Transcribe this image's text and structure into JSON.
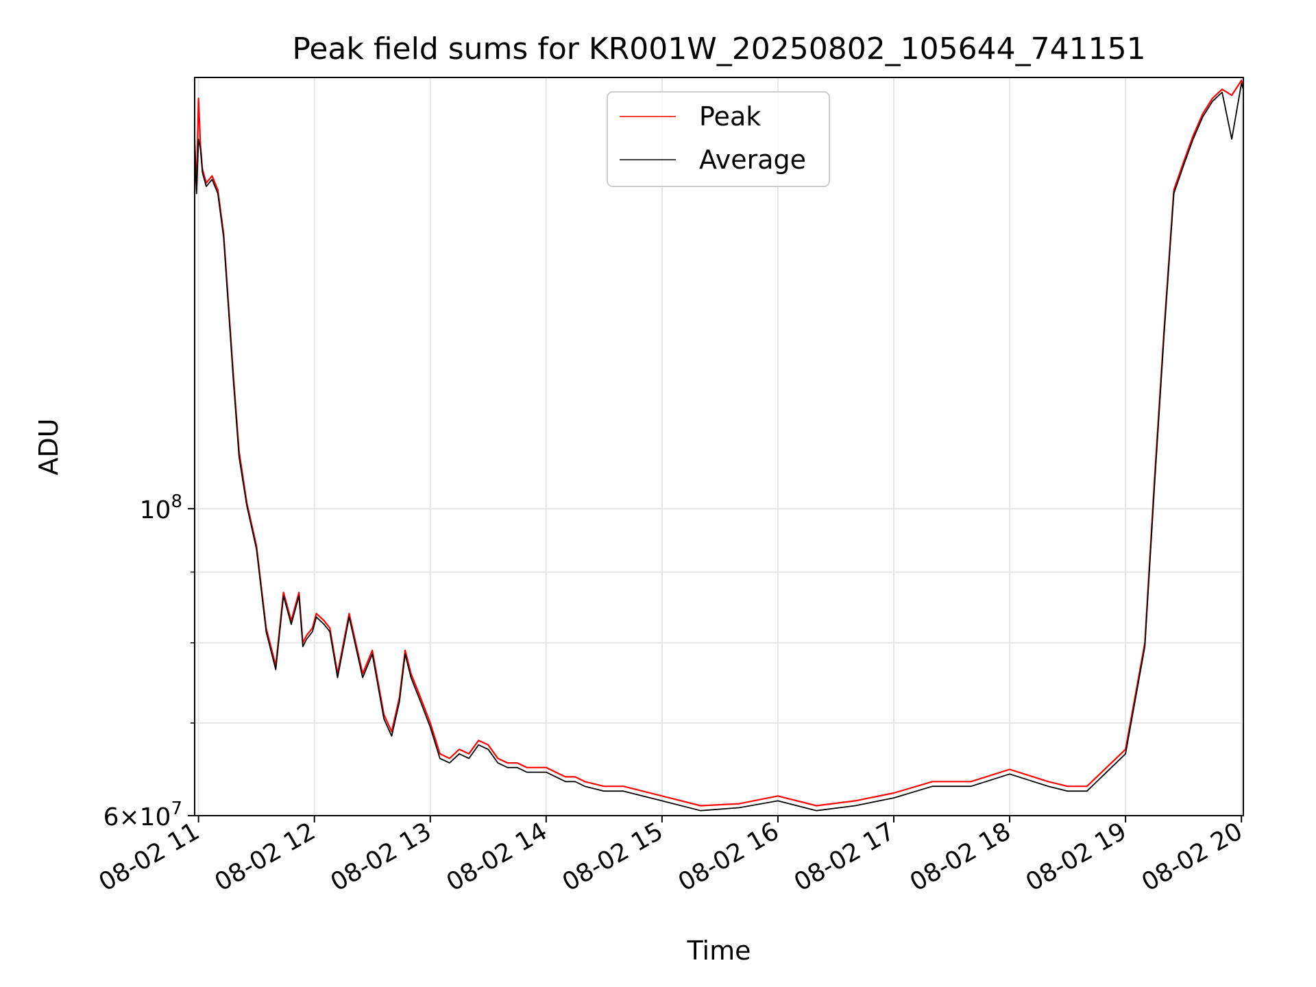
{
  "chart_data": {
    "type": "line",
    "title": "Peak field sums for KR001W_20250802_105644_741151",
    "xlabel": "Time",
    "ylabel": "ADU",
    "yscale": "log",
    "xlim": [
      "2025-08-02 10:58",
      "2025-08-02 20:01"
    ],
    "ylim": [
      60000000,
      205000000
    ],
    "x_ticks": [
      "08-02 11",
      "08-02 12",
      "08-02 13",
      "08-02 14",
      "08-02 15",
      "08-02 16",
      "08-02 17",
      "08-02 18",
      "08-02 19",
      "08-02 20"
    ],
    "y_major_ticks": [
      {
        "value": 60000000,
        "mantissa": "6",
        "exponent": "7"
      },
      {
        "value": 100000000,
        "mantissa": "",
        "exponent": "8"
      }
    ],
    "y_minor_ticks": [
      70000000,
      80000000,
      90000000
    ],
    "grid": true,
    "legend_position": "top-center",
    "series": [
      {
        "name": "Peak",
        "color": "#ff0000",
        "x": [
          "10:58",
          "10:59",
          "11:00",
          "11:01",
          "11:02",
          "11:04",
          "11:07",
          "11:10",
          "11:13",
          "11:18",
          "11:21",
          "11:25",
          "11:30",
          "11:35",
          "11:40",
          "11:44",
          "11:48",
          "11:52",
          "11:54",
          "11:56",
          "11:59",
          "12:01",
          "12:05",
          "12:08",
          "12:12",
          "12:18",
          "12:25",
          "12:30",
          "12:36",
          "12:40",
          "12:44",
          "12:47",
          "12:50",
          "12:55",
          "13:00",
          "13:05",
          "13:10",
          "13:15",
          "13:20",
          "13:25",
          "13:30",
          "13:35",
          "13:40",
          "13:45",
          "13:50",
          "13:55",
          "14:00",
          "14:05",
          "14:10",
          "14:15",
          "14:20",
          "14:30",
          "14:40",
          "15:00",
          "15:20",
          "15:40",
          "16:00",
          "16:20",
          "16:40",
          "17:00",
          "17:20",
          "17:40",
          "18:00",
          "18:20",
          "18:30",
          "18:40",
          "19:00",
          "19:10",
          "19:15",
          "19:20",
          "19:25",
          "19:30",
          "19:35",
          "19:40",
          "19:45",
          "19:50",
          "19:55",
          "20:00",
          "20:01"
        ],
        "y": [
          185000000,
          170000000,
          198000000,
          183000000,
          176000000,
          172000000,
          174000000,
          170000000,
          158000000,
          125000000,
          110000000,
          101000000,
          94000000,
          82000000,
          77000000,
          87000000,
          83000000,
          87000000,
          80000000,
          81000000,
          82000000,
          84000000,
          83000000,
          82000000,
          76000000,
          84000000,
          76000000,
          79000000,
          71000000,
          69000000,
          73000000,
          79000000,
          76000000,
          73000000,
          70000000,
          66500000,
          66000000,
          67000000,
          66500000,
          68000000,
          67500000,
          66000000,
          65500000,
          65500000,
          65000000,
          65000000,
          65000000,
          64500000,
          64000000,
          64000000,
          63500000,
          63000000,
          63000000,
          62000000,
          61000000,
          61200000,
          62000000,
          61000000,
          61500000,
          62300000,
          63500000,
          63500000,
          64800000,
          63500000,
          63000000,
          63000000,
          67000000,
          80000000,
          105000000,
          135000000,
          170000000,
          178000000,
          186000000,
          193000000,
          198000000,
          201000000,
          199000000,
          204000000,
          202000000
        ]
      },
      {
        "name": "Average",
        "color": "#000000",
        "x": [
          "10:58",
          "10:59",
          "11:00",
          "11:01",
          "11:02",
          "11:04",
          "11:07",
          "11:10",
          "11:13",
          "11:18",
          "11:21",
          "11:25",
          "11:30",
          "11:35",
          "11:40",
          "11:44",
          "11:48",
          "11:52",
          "11:54",
          "11:56",
          "11:59",
          "12:01",
          "12:05",
          "12:08",
          "12:12",
          "12:18",
          "12:25",
          "12:30",
          "12:36",
          "12:40",
          "12:44",
          "12:47",
          "12:50",
          "12:55",
          "13:00",
          "13:05",
          "13:10",
          "13:15",
          "13:20",
          "13:25",
          "13:30",
          "13:35",
          "13:40",
          "13:45",
          "13:50",
          "13:55",
          "14:00",
          "14:05",
          "14:10",
          "14:15",
          "14:20",
          "14:30",
          "14:40",
          "15:00",
          "15:20",
          "15:40",
          "16:00",
          "16:20",
          "16:40",
          "17:00",
          "17:20",
          "17:40",
          "18:00",
          "18:20",
          "18:30",
          "18:40",
          "19:00",
          "19:10",
          "19:15",
          "19:20",
          "19:25",
          "19:30",
          "19:35",
          "19:40",
          "19:45",
          "19:50",
          "19:55",
          "20:00",
          "20:01"
        ],
        "y": [
          184000000,
          169000000,
          185000000,
          182000000,
          175000000,
          171000000,
          173000000,
          169000000,
          157000000,
          124000000,
          109000000,
          100500000,
          93500000,
          81500000,
          76500000,
          86500000,
          82500000,
          86500000,
          79500000,
          80500000,
          81500000,
          83500000,
          82500000,
          81500000,
          75500000,
          83500000,
          75500000,
          78500000,
          70500000,
          68500000,
          72500000,
          78500000,
          75500000,
          72500000,
          69500000,
          66000000,
          65500000,
          66500000,
          66000000,
          67500000,
          67000000,
          65500000,
          65000000,
          65000000,
          64500000,
          64500000,
          64500000,
          64000000,
          63500000,
          63500000,
          63000000,
          62500000,
          62500000,
          61500000,
          60500000,
          60800000,
          61500000,
          60500000,
          61000000,
          61800000,
          63000000,
          63000000,
          64300000,
          63000000,
          62500000,
          62500000,
          66500000,
          79500000,
          104000000,
          134000000,
          169000000,
          177000000,
          185000000,
          192000000,
          197000000,
          200000000,
          185000000,
          203000000,
          201000000
        ]
      }
    ]
  }
}
